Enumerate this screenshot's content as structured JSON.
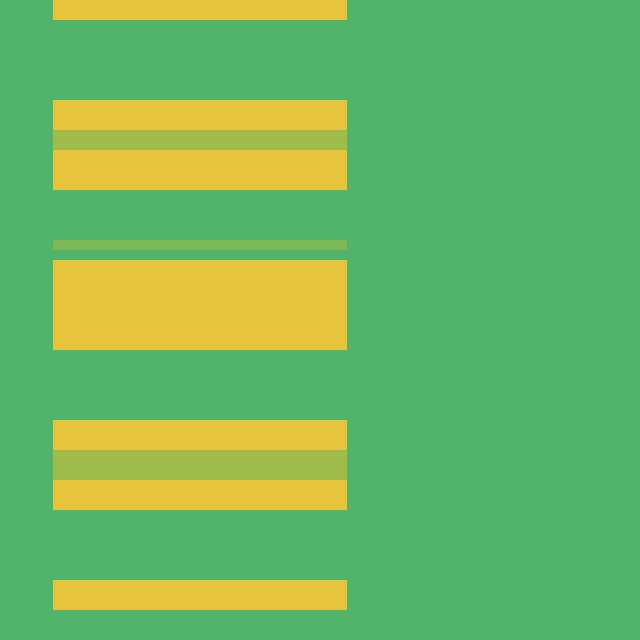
{
  "chart_data": {
    "type": "heatmap",
    "tick_labels": false,
    "cells": [
      [
        0,
        0,
        1,
        1,
        1,
        1,
        1,
        1,
        1,
        1,
        1,
        1,
        1,
        0,
        0,
        0,
        0,
        0,
        0,
        0,
        0,
        0,
        0,
        0
      ],
      [
        0,
        0,
        1,
        1,
        1,
        1,
        1,
        1,
        1,
        1,
        1,
        1,
        1,
        0,
        0,
        0,
        0,
        0,
        0,
        0,
        0,
        0,
        0,
        0
      ],
      [
        0,
        0,
        0,
        0,
        0,
        0,
        0,
        0,
        0,
        0,
        0,
        0,
        0,
        0,
        0,
        0,
        0,
        0,
        0,
        0,
        0,
        0,
        0,
        0
      ],
      [
        0,
        0,
        0,
        0,
        0,
        0,
        0,
        0,
        0,
        0,
        0,
        0,
        0,
        0,
        0,
        0,
        0,
        0,
        0,
        0,
        0,
        0,
        0,
        0
      ],
      [
        0,
        0,
        0,
        0,
        0,
        0,
        0,
        0,
        0,
        0,
        0,
        0,
        0,
        0,
        0,
        0,
        0,
        0,
        0,
        0,
        0,
        0,
        0,
        0
      ],
      [
        0,
        0,
        0,
        0,
        0,
        0,
        0,
        0,
        0,
        0,
        0,
        0,
        0,
        0,
        0,
        0,
        0,
        0,
        0,
        0,
        0,
        0,
        0,
        0
      ],
      [
        0,
        0,
        0,
        0,
        0,
        0,
        0,
        0,
        0,
        0,
        0,
        0,
        0,
        0,
        0,
        0,
        0,
        0,
        0,
        0,
        0,
        0,
        0,
        0
      ],
      [
        0,
        0,
        0,
        0,
        0,
        0,
        0,
        0,
        0,
        0,
        0,
        0,
        0,
        0,
        0,
        0,
        0,
        0,
        0,
        0,
        0,
        0,
        0,
        0
      ],
      [
        0,
        0,
        0,
        0,
        0,
        0,
        0,
        0,
        0,
        0,
        0,
        0,
        0,
        0,
        0,
        0,
        0,
        0,
        0,
        0,
        0,
        0,
        0,
        0
      ],
      [
        0,
        0,
        0,
        0,
        0,
        0,
        0,
        0,
        0,
        0,
        0,
        0,
        0,
        0,
        0,
        0,
        0,
        0,
        0,
        0,
        0,
        0,
        0,
        0
      ],
      [
        0,
        0,
        1,
        1,
        1,
        1,
        1,
        1,
        1,
        1,
        1,
        1,
        1,
        0,
        0,
        0,
        0,
        0,
        0,
        0,
        0,
        0,
        0,
        0
      ],
      [
        0,
        0,
        1,
        1,
        1,
        1,
        1,
        1,
        1,
        1,
        1,
        1,
        1,
        0,
        0,
        0,
        0,
        0,
        0,
        0,
        0,
        0,
        0,
        0
      ],
      [
        0,
        0,
        1,
        1,
        1,
        1,
        1,
        1,
        1,
        1,
        1,
        1,
        1,
        0,
        0,
        0,
        0,
        0,
        0,
        0,
        0,
        0,
        0,
        0
      ],
      [
        0,
        0,
        0.5,
        0.5,
        0.5,
        0.5,
        0.5,
        0.5,
        0.5,
        0.5,
        0.5,
        0.5,
        0.5,
        0,
        0,
        0,
        0,
        0,
        0,
        0,
        0,
        0,
        0,
        0
      ],
      [
        0,
        0,
        0.5,
        0.5,
        0.5,
        0.5,
        0.5,
        0.5,
        0.5,
        0.5,
        0.5,
        0.5,
        0.5,
        0,
        0,
        0,
        0,
        0,
        0,
        0,
        0,
        0,
        0,
        0
      ],
      [
        0,
        0,
        1,
        1,
        1,
        1,
        1,
        1,
        1,
        1,
        1,
        1,
        1,
        0,
        0,
        0,
        0,
        0,
        0,
        0,
        0,
        0,
        0,
        0
      ],
      [
        0,
        0,
        1,
        1,
        1,
        1,
        1,
        1,
        1,
        1,
        1,
        1,
        1,
        0,
        0,
        0,
        0,
        0,
        0,
        0,
        0,
        0,
        0,
        0
      ],
      [
        0,
        0,
        1,
        1,
        1,
        1,
        1,
        1,
        1,
        1,
        1,
        1,
        1,
        0,
        0,
        0,
        0,
        0,
        0,
        0,
        0,
        0,
        0,
        0
      ],
      [
        0,
        0,
        1,
        1,
        1,
        1,
        1,
        1,
        1,
        1,
        1,
        1,
        1,
        0,
        0,
        0,
        0,
        0,
        0,
        0,
        0,
        0,
        0,
        0
      ],
      [
        0,
        0,
        0,
        0,
        0,
        0,
        0,
        0,
        0,
        0,
        0,
        0,
        0,
        0,
        0,
        0,
        0,
        0,
        0,
        0,
        0,
        0,
        0,
        0
      ],
      [
        0,
        0,
        0,
        0,
        0,
        0,
        0,
        0,
        0,
        0,
        0,
        0,
        0,
        0,
        0,
        0,
        0,
        0,
        0,
        0,
        0,
        0,
        0,
        0
      ],
      [
        0,
        0,
        0,
        0,
        0,
        0,
        0,
        0,
        0,
        0,
        0,
        0,
        0,
        0,
        0,
        0,
        0,
        0,
        0,
        0,
        0,
        0,
        0,
        0
      ],
      [
        0,
        0,
        0,
        0,
        0,
        0,
        0,
        0,
        0,
        0,
        0,
        0,
        0,
        0,
        0,
        0,
        0,
        0,
        0,
        0,
        0,
        0,
        0,
        0
      ],
      [
        0,
        0,
        0,
        0,
        0,
        0,
        0,
        0,
        0,
        0,
        0,
        0,
        0,
        0,
        0,
        0,
        0,
        0,
        0,
        0,
        0,
        0,
        0,
        0
      ],
      [
        0,
        0,
        0.3,
        0.3,
        0.3,
        0.3,
        0.3,
        0.3,
        0.3,
        0.3,
        0.3,
        0.3,
        0.3,
        0,
        0,
        0,
        0,
        0,
        0,
        0,
        0,
        0,
        0,
        0
      ],
      [
        0,
        0,
        0,
        0,
        0,
        0,
        0,
        0,
        0,
        0,
        0,
        0,
        0,
        0,
        0,
        0,
        0,
        0,
        0,
        0,
        0,
        0,
        0,
        0
      ],
      [
        0,
        0,
        1,
        1,
        1,
        1,
        1,
        1,
        1,
        1,
        1,
        1,
        1,
        0,
        0,
        0,
        0,
        0,
        0,
        0,
        0,
        0,
        0,
        0
      ],
      [
        0,
        0,
        1,
        1,
        1,
        1,
        1,
        1,
        1,
        1,
        1,
        1,
        1,
        0,
        0,
        0,
        0,
        0,
        0,
        0,
        0,
        0,
        0,
        0
      ],
      [
        0,
        0,
        1,
        1,
        1,
        1,
        1,
        1,
        1,
        1,
        1,
        1,
        1,
        0,
        0,
        0,
        0,
        0,
        0,
        0,
        0,
        0,
        0,
        0
      ],
      [
        0,
        0,
        1,
        1,
        1,
        1,
        1,
        1,
        1,
        1,
        1,
        1,
        1,
        0,
        0,
        0,
        0,
        0,
        0,
        0,
        0,
        0,
        0,
        0
      ],
      [
        0,
        0,
        1,
        1,
        1,
        1,
        1,
        1,
        1,
        1,
        1,
        1,
        1,
        0,
        0,
        0,
        0,
        0,
        0,
        0,
        0,
        0,
        0,
        0
      ],
      [
        0,
        0,
        1,
        1,
        1,
        1,
        1,
        1,
        1,
        1,
        1,
        1,
        1,
        0,
        0,
        0,
        0,
        0,
        0,
        0,
        0,
        0,
        0,
        0
      ],
      [
        0,
        0,
        1,
        1,
        1,
        1,
        1,
        1,
        1,
        1,
        1,
        1,
        1,
        0,
        0,
        0,
        0,
        0,
        0,
        0,
        0,
        0,
        0,
        0
      ],
      [
        0,
        0,
        1,
        1,
        1,
        1,
        1,
        1,
        1,
        1,
        1,
        1,
        1,
        0,
        0,
        0,
        0,
        0,
        0,
        0,
        0,
        0,
        0,
        0
      ],
      [
        0,
        0,
        1,
        1,
        1,
        1,
        1,
        1,
        1,
        1,
        1,
        1,
        1,
        0,
        0,
        0,
        0,
        0,
        0,
        0,
        0,
        0,
        0,
        0
      ],
      [
        0,
        0,
        0,
        0,
        0,
        0,
        0,
        0,
        0,
        0,
        0,
        0,
        0,
        0,
        0,
        0,
        0,
        0,
        0,
        0,
        0,
        0,
        0,
        0
      ],
      [
        0,
        0,
        0,
        0,
        0,
        0,
        0,
        0,
        0,
        0,
        0,
        0,
        0,
        0,
        0,
        0,
        0,
        0,
        0,
        0,
        0,
        0,
        0,
        0
      ],
      [
        0,
        0,
        0,
        0,
        0,
        0,
        0,
        0,
        0,
        0,
        0,
        0,
        0,
        0,
        0,
        0,
        0,
        0,
        0,
        0,
        0,
        0,
        0,
        0
      ],
      [
        0,
        0,
        0,
        0,
        0,
        0,
        0,
        0,
        0,
        0,
        0,
        0,
        0,
        0,
        0,
        0,
        0,
        0,
        0,
        0,
        0,
        0,
        0,
        0
      ],
      [
        0,
        0,
        0,
        0,
        0,
        0,
        0,
        0,
        0,
        0,
        0,
        0,
        0,
        0,
        0,
        0,
        0,
        0,
        0,
        0,
        0,
        0,
        0,
        0
      ],
      [
        0,
        0,
        0,
        0,
        0,
        0,
        0,
        0,
        0,
        0,
        0,
        0,
        0,
        0,
        0,
        0,
        0,
        0,
        0,
        0,
        0,
        0,
        0,
        0
      ],
      [
        0,
        0,
        0,
        0,
        0,
        0,
        0,
        0,
        0,
        0,
        0,
        0,
        0,
        0,
        0,
        0,
        0,
        0,
        0,
        0,
        0,
        0,
        0,
        0
      ],
      [
        0,
        0,
        1,
        1,
        1,
        1,
        1,
        1,
        1,
        1,
        1,
        1,
        1,
        0,
        0,
        0,
        0,
        0,
        0,
        0,
        0,
        0,
        0,
        0
      ],
      [
        0,
        0,
        1,
        1,
        1,
        1,
        1,
        1,
        1,
        1,
        1,
        1,
        1,
        0,
        0,
        0,
        0,
        0,
        0,
        0,
        0,
        0,
        0,
        0
      ],
      [
        0,
        0,
        1,
        1,
        1,
        1,
        1,
        1,
        1,
        1,
        1,
        1,
        1,
        0,
        0,
        0,
        0,
        0,
        0,
        0,
        0,
        0,
        0,
        0
      ],
      [
        0,
        0,
        0.5,
        0.5,
        0.5,
        0.5,
        0.5,
        0.5,
        0.5,
        0.5,
        0.5,
        0.5,
        0.5,
        0,
        0,
        0,
        0,
        0,
        0,
        0,
        0,
        0,
        0,
        0
      ],
      [
        0,
        0,
        0.5,
        0.5,
        0.5,
        0.5,
        0.5,
        0.5,
        0.5,
        0.5,
        0.5,
        0.5,
        0.5,
        0,
        0,
        0,
        0,
        0,
        0,
        0,
        0,
        0,
        0,
        0
      ],
      [
        0,
        0,
        0.5,
        0.5,
        0.5,
        0.5,
        0.5,
        0.5,
        0.5,
        0.5,
        0.5,
        0.5,
        0.5,
        0,
        0,
        0,
        0,
        0,
        0,
        0,
        0,
        0,
        0,
        0
      ],
      [
        0,
        0,
        1,
        1,
        1,
        1,
        1,
        1,
        1,
        1,
        1,
        1,
        1,
        0,
        0,
        0,
        0,
        0,
        0,
        0,
        0,
        0,
        0,
        0
      ],
      [
        0,
        0,
        1,
        1,
        1,
        1,
        1,
        1,
        1,
        1,
        1,
        1,
        1,
        0,
        0,
        0,
        0,
        0,
        0,
        0,
        0,
        0,
        0,
        0
      ],
      [
        0,
        0,
        1,
        1,
        1,
        1,
        1,
        1,
        1,
        1,
        1,
        1,
        1,
        0,
        0,
        0,
        0,
        0,
        0,
        0,
        0,
        0,
        0,
        0
      ],
      [
        0,
        0,
        0,
        0,
        0,
        0,
        0,
        0,
        0,
        0,
        0,
        0,
        0,
        0,
        0,
        0,
        0,
        0,
        0,
        0,
        0,
        0,
        0,
        0
      ],
      [
        0,
        0,
        0,
        0,
        0,
        0,
        0,
        0,
        0,
        0,
        0,
        0,
        0,
        0,
        0,
        0,
        0,
        0,
        0,
        0,
        0,
        0,
        0,
        0
      ],
      [
        0,
        0,
        0,
        0,
        0,
        0,
        0,
        0,
        0,
        0,
        0,
        0,
        0,
        0,
        0,
        0,
        0,
        0,
        0,
        0,
        0,
        0,
        0,
        0
      ],
      [
        0,
        0,
        0,
        0,
        0,
        0,
        0,
        0,
        0,
        0,
        0,
        0,
        0,
        0,
        0,
        0,
        0,
        0,
        0,
        0,
        0,
        0,
        0,
        0
      ],
      [
        0,
        0,
        0,
        0,
        0,
        0,
        0,
        0,
        0,
        0,
        0,
        0,
        0,
        0,
        0,
        0,
        0,
        0,
        0,
        0,
        0,
        0,
        0,
        0
      ],
      [
        0,
        0,
        0,
        0,
        0,
        0,
        0,
        0,
        0,
        0,
        0,
        0,
        0,
        0,
        0,
        0,
        0,
        0,
        0,
        0,
        0,
        0,
        0,
        0
      ],
      [
        0,
        0,
        0,
        0,
        0,
        0,
        0,
        0,
        0,
        0,
        0,
        0,
        0,
        0,
        0,
        0,
        0,
        0,
        0,
        0,
        0,
        0,
        0,
        0
      ],
      [
        0,
        0,
        1,
        1,
        1,
        1,
        1,
        1,
        1,
        1,
        1,
        1,
        1,
        0,
        0,
        0,
        0,
        0,
        0,
        0,
        0,
        0,
        0,
        0
      ],
      [
        0,
        0,
        1,
        1,
        1,
        1,
        1,
        1,
        1,
        1,
        1,
        1,
        1,
        0,
        0,
        0,
        0,
        0,
        0,
        0,
        0,
        0,
        0,
        0
      ],
      [
        0,
        0,
        1,
        1,
        1,
        1,
        1,
        1,
        1,
        1,
        1,
        1,
        1,
        0,
        0,
        0,
        0,
        0,
        0,
        0,
        0,
        0,
        0,
        0
      ],
      [
        0,
        0,
        0,
        0,
        0,
        0,
        0,
        0,
        0,
        0,
        0,
        0,
        0,
        0,
        0,
        0,
        0,
        0,
        0,
        0,
        0,
        0,
        0,
        0
      ],
      [
        0,
        0,
        0,
        0,
        0,
        0,
        0,
        0,
        0,
        0,
        0,
        0,
        0,
        0,
        0,
        0,
        0,
        0,
        0,
        0,
        0,
        0,
        0,
        0
      ],
      [
        0,
        0,
        0,
        0,
        0,
        0,
        0,
        0,
        0,
        0,
        0,
        0,
        0,
        0,
        0,
        0,
        0,
        0,
        0,
        0,
        0,
        0,
        0,
        0
      ]
    ]
  }
}
